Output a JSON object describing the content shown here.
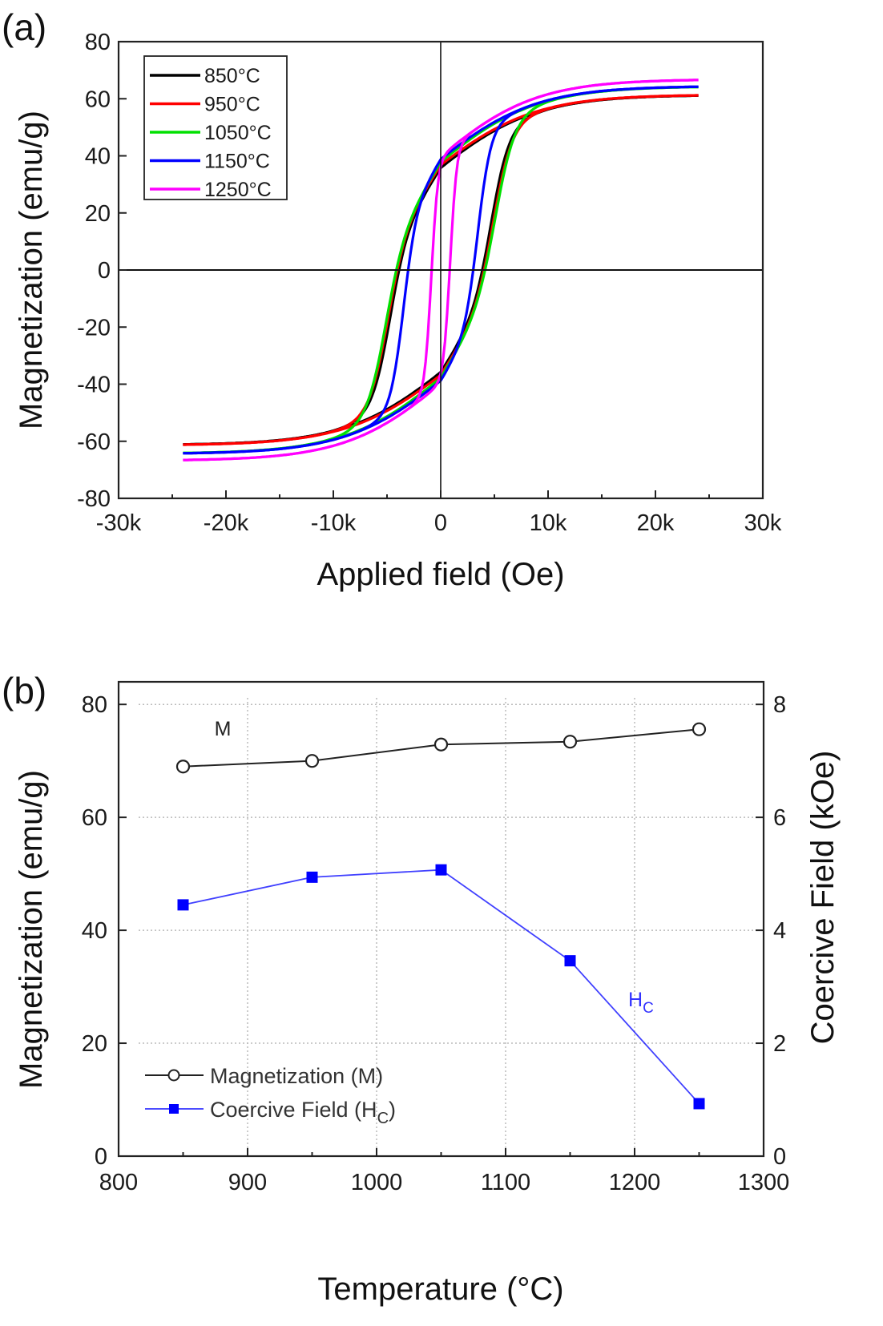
{
  "chart_data": [
    {
      "panel_label": "(a)",
      "type": "line",
      "title": "",
      "xlabel": "Applied field (Oe)",
      "ylabel": "Magnetization (emu/g)",
      "xlim": [
        -30000,
        30000
      ],
      "ylim": [
        -80,
        80
      ],
      "x_ticks": [
        -30000,
        -20000,
        -10000,
        0,
        10000,
        20000,
        30000
      ],
      "x_tick_labels": [
        "-30k",
        "-20k",
        "-10k",
        "0",
        "10k",
        "20k",
        "30k"
      ],
      "y_ticks": [
        -80,
        -60,
        -40,
        -20,
        0,
        20,
        40,
        60,
        80
      ],
      "y_tick_labels": [
        "-80",
        "-60",
        "-40",
        "-20",
        "0",
        "20",
        "40",
        "60",
        "80"
      ],
      "grid": false,
      "zero_lines": true,
      "legend_position": "top-left",
      "field_range_oe": [
        -24000,
        24000
      ],
      "series": [
        {
          "name": "850°C",
          "color": "#000000",
          "saturation_emu_g": 69.0,
          "coercivity_oe": 4800,
          "remanence_emu_g": 36
        },
        {
          "name": "950°C",
          "color": "#ff0000",
          "saturation_emu_g": 69.5,
          "coercivity_oe": 5000,
          "remanence_emu_g": 37
        },
        {
          "name": "1050°C",
          "color": "#00e000",
          "saturation_emu_g": 72.5,
          "coercivity_oe": 5200,
          "remanence_emu_g": 38
        },
        {
          "name": "1150°C",
          "color": "#0000ff",
          "saturation_emu_g": 73.0,
          "coercivity_oe": 3500,
          "remanence_emu_g": 39
        },
        {
          "name": "1250°C",
          "color": "#ff00ff",
          "saturation_emu_g": 75.5,
          "coercivity_oe": 900,
          "remanence_emu_g": 40
        }
      ]
    },
    {
      "panel_label": "(b)",
      "type": "line",
      "title": "",
      "xlabel": "Temperature (°C)",
      "ylabel": "Magnetization (emu/g)",
      "y2label": "Coercive Field (kOe)",
      "xlim": [
        800,
        1300
      ],
      "ylim": [
        0,
        84
      ],
      "y2lim": [
        0,
        8.4
      ],
      "x_ticks": [
        800,
        900,
        1000,
        1100,
        1200,
        1300
      ],
      "x_tick_labels": [
        "800",
        "900",
        "1000",
        "1100",
        "1200",
        "1300"
      ],
      "y_ticks": [
        0,
        20,
        40,
        60,
        80
      ],
      "y_tick_labels": [
        "0",
        "20",
        "40",
        "60",
        "80"
      ],
      "y2_ticks": [
        0,
        2,
        4,
        6,
        8
      ],
      "y2_tick_labels": [
        "0",
        "2",
        "4",
        "6",
        "8"
      ],
      "grid": true,
      "legend_position": "bottom-left",
      "x": [
        850,
        950,
        1050,
        1150,
        1250
      ],
      "series": [
        {
          "name": "Magnetization (M)",
          "axis": "left",
          "color": "#222222",
          "marker": "open-circle",
          "values": [
            69.0,
            70.0,
            72.9,
            73.4,
            75.6
          ]
        },
        {
          "name": "Coercive Field (H",
          "name_sub": "C",
          "name_suffix": ")",
          "axis": "right",
          "color": "#0000ff",
          "marker": "filled-square",
          "values": [
            4.45,
            4.94,
            5.07,
            3.46,
            0.93
          ]
        }
      ],
      "annotations": [
        {
          "text": "M",
          "color": "#222222",
          "near_series": "Magnetization (M)"
        },
        {
          "text": "H",
          "sub": "C",
          "color": "#3333ff",
          "near_series": "Coercive Field"
        }
      ]
    }
  ]
}
